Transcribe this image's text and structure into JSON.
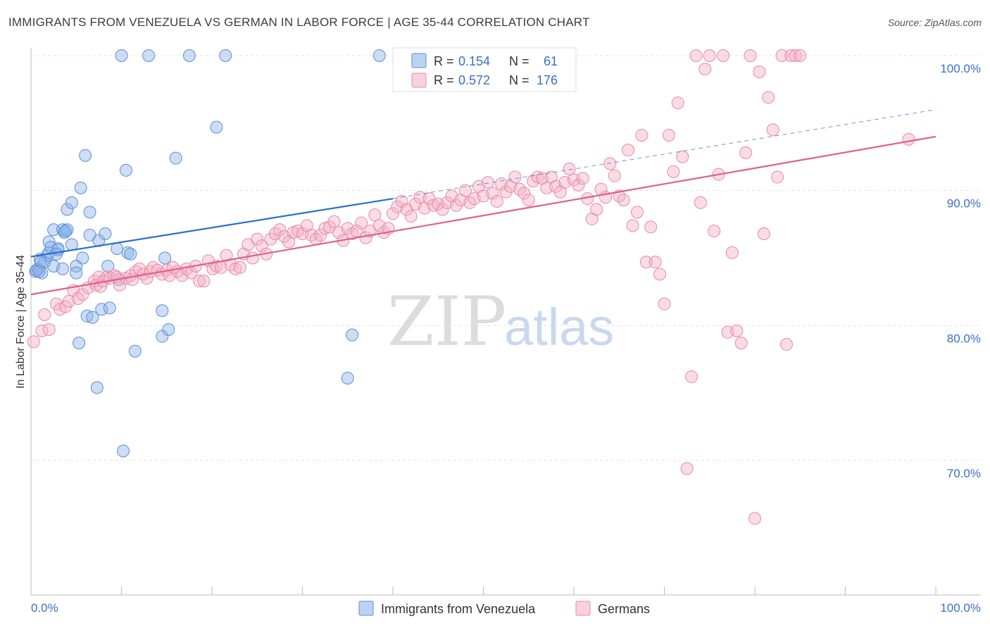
{
  "title": "IMMIGRANTS FROM VENEZUELA VS GERMAN IN LABOR FORCE | AGE 35-44 CORRELATION CHART",
  "source": "Source: ZipAtlas.com",
  "watermark": {
    "part1": "ZIP",
    "part2": "atlas"
  },
  "chart_data": {
    "type": "scatter",
    "ylabel": "In Labor Force | Age 35-44",
    "xlim": [
      0,
      100
    ],
    "ylim": [
      60,
      101
    ],
    "x_tick_labels": [
      "0.0%",
      "100.0%"
    ],
    "y_ticks": [
      70,
      80,
      90,
      100
    ],
    "y_tick_labels": [
      "70.0%",
      "80.0%",
      "90.0%",
      "100.0%"
    ],
    "grid": true,
    "legend_placement": "top-center",
    "stats": [
      {
        "r_label": "R =",
        "r": "0.154",
        "n_label": "N =",
        "n": "61"
      },
      {
        "r_label": "R =",
        "r": "0.572",
        "n_label": "N =",
        "n": "176"
      }
    ],
    "series": [
      {
        "name": "Immigrants from Venezuela",
        "color": "#8fb4e8",
        "stroke": "#5a8fd6",
        "line_color": "#2a6fcc",
        "trend": {
          "x0": 0,
          "y0": 85.1,
          "x1": 40,
          "y1": 89.4,
          "dash_to_x": 100,
          "dash_to_y": 96.0
        },
        "points": [
          [
            0.5,
            84.0
          ],
          [
            0.8,
            84.2
          ],
          [
            1.0,
            84.9
          ],
          [
            1.2,
            83.9
          ],
          [
            1.5,
            84.7
          ],
          [
            1.8,
            85.2
          ],
          [
            2.0,
            85.4
          ],
          [
            2.0,
            86.2
          ],
          [
            2.2,
            85.8
          ],
          [
            2.5,
            84.4
          ],
          [
            2.5,
            87.1
          ],
          [
            3.0,
            85.6
          ],
          [
            3.0,
            85.7
          ],
          [
            3.5,
            84.2
          ],
          [
            3.5,
            87.1
          ],
          [
            3.7,
            86.9
          ],
          [
            4.0,
            88.6
          ],
          [
            4.0,
            87.1
          ],
          [
            4.5,
            89.1
          ],
          [
            4.5,
            86.0
          ],
          [
            5.0,
            84.4
          ],
          [
            5.0,
            83.9
          ],
          [
            5.3,
            78.7
          ],
          [
            5.5,
            90.2
          ],
          [
            5.7,
            85.0
          ],
          [
            6.0,
            92.6
          ],
          [
            6.2,
            80.7
          ],
          [
            6.5,
            88.4
          ],
          [
            6.5,
            86.7
          ],
          [
            6.8,
            80.6
          ],
          [
            7.3,
            75.4
          ],
          [
            7.5,
            86.3
          ],
          [
            7.8,
            81.2
          ],
          [
            8.2,
            86.8
          ],
          [
            8.5,
            84.4
          ],
          [
            8.7,
            81.3
          ],
          [
            9.5,
            85.7
          ],
          [
            9.7,
            83.4
          ],
          [
            10.0,
            100.0
          ],
          [
            10.2,
            70.7
          ],
          [
            10.5,
            91.5
          ],
          [
            10.7,
            85.4
          ],
          [
            11.0,
            85.3
          ],
          [
            11.5,
            78.1
          ],
          [
            13.0,
            100.0
          ],
          [
            14.5,
            81.1
          ],
          [
            14.5,
            79.2
          ],
          [
            14.8,
            85.0
          ],
          [
            15.2,
            79.7
          ],
          [
            16.0,
            92.4
          ],
          [
            17.5,
            100.0
          ],
          [
            20.5,
            94.7
          ],
          [
            21.5,
            100.0
          ],
          [
            35.5,
            79.3
          ],
          [
            35.0,
            76.1
          ],
          [
            38.5,
            100.0
          ],
          [
            0.6,
            84.1
          ],
          [
            1.1,
            84.7
          ],
          [
            2.8,
            85.3
          ],
          [
            3.8,
            87.0
          ],
          [
            0.9,
            84.0
          ]
        ]
      },
      {
        "name": "Germans",
        "color": "#f4b2c6",
        "stroke": "#e889a7",
        "line_color": "#e0608a",
        "trend": {
          "x0": 0,
          "y0": 82.3,
          "x1": 100,
          "y1": 94.0
        },
        "points": [
          [
            0.3,
            78.8
          ],
          [
            1.2,
            79.6
          ],
          [
            1.5,
            80.8
          ],
          [
            2.0,
            79.7
          ],
          [
            2.8,
            81.6
          ],
          [
            3.2,
            81.2
          ],
          [
            3.8,
            81.4
          ],
          [
            4.2,
            81.8
          ],
          [
            4.7,
            82.6
          ],
          [
            5.2,
            82.0
          ],
          [
            5.7,
            82.3
          ],
          [
            6.3,
            82.8
          ],
          [
            7.0,
            83.3
          ],
          [
            7.2,
            83.0
          ],
          [
            7.5,
            83.6
          ],
          [
            7.7,
            82.9
          ],
          [
            8.0,
            83.3
          ],
          [
            8.4,
            83.6
          ],
          [
            8.7,
            83.5
          ],
          [
            9.2,
            83.7
          ],
          [
            9.5,
            83.6
          ],
          [
            9.8,
            83.0
          ],
          [
            10.5,
            83.5
          ],
          [
            11.0,
            83.7
          ],
          [
            11.2,
            83.4
          ],
          [
            11.6,
            84.0
          ],
          [
            12.0,
            84.2
          ],
          [
            12.4,
            83.8
          ],
          [
            12.8,
            83.5
          ],
          [
            13.2,
            84.0
          ],
          [
            13.5,
            84.3
          ],
          [
            14.0,
            84.1
          ],
          [
            14.5,
            83.8
          ],
          [
            15.0,
            84.1
          ],
          [
            15.3,
            83.7
          ],
          [
            15.7,
            84.3
          ],
          [
            16.2,
            84.0
          ],
          [
            16.7,
            83.7
          ],
          [
            17.2,
            84.2
          ],
          [
            17.7,
            83.9
          ],
          [
            18.2,
            84.4
          ],
          [
            18.6,
            83.3
          ],
          [
            19.1,
            83.3
          ],
          [
            19.6,
            84.8
          ],
          [
            20.1,
            84.2
          ],
          [
            20.5,
            84.4
          ],
          [
            21.0,
            84.3
          ],
          [
            21.6,
            85.2
          ],
          [
            22.1,
            84.5
          ],
          [
            22.6,
            84.2
          ],
          [
            23.1,
            84.3
          ],
          [
            23.5,
            85.3
          ],
          [
            24.0,
            86.0
          ],
          [
            24.5,
            85.0
          ],
          [
            25.0,
            86.4
          ],
          [
            25.5,
            85.9
          ],
          [
            26.0,
            85.3
          ],
          [
            26.5,
            86.4
          ],
          [
            27.0,
            86.8
          ],
          [
            27.5,
            87.1
          ],
          [
            28.0,
            86.6
          ],
          [
            28.5,
            86.2
          ],
          [
            29.0,
            86.9
          ],
          [
            29.5,
            87.0
          ],
          [
            30.0,
            86.8
          ],
          [
            30.5,
            87.4
          ],
          [
            31.0,
            86.7
          ],
          [
            31.5,
            86.4
          ],
          [
            32.0,
            86.7
          ],
          [
            32.5,
            87.2
          ],
          [
            33.0,
            87.3
          ],
          [
            33.5,
            87.7
          ],
          [
            34.0,
            86.9
          ],
          [
            34.5,
            86.3
          ],
          [
            35.0,
            87.2
          ],
          [
            35.5,
            86.8
          ],
          [
            36.0,
            87.0
          ],
          [
            36.5,
            87.6
          ],
          [
            37.0,
            86.5
          ],
          [
            37.5,
            87.0
          ],
          [
            38.0,
            88.2
          ],
          [
            38.5,
            87.4
          ],
          [
            39.0,
            86.9
          ],
          [
            39.5,
            87.2
          ],
          [
            40.0,
            88.3
          ],
          [
            40.5,
            88.8
          ],
          [
            41.0,
            89.2
          ],
          [
            41.5,
            88.6
          ],
          [
            42.0,
            88.1
          ],
          [
            42.5,
            89.0
          ],
          [
            43.0,
            89.5
          ],
          [
            43.5,
            88.7
          ],
          [
            44.0,
            89.4
          ],
          [
            44.5,
            88.9
          ],
          [
            45.0,
            89.0
          ],
          [
            45.5,
            88.6
          ],
          [
            46.0,
            89.1
          ],
          [
            46.5,
            89.6
          ],
          [
            47.0,
            88.9
          ],
          [
            47.5,
            89.3
          ],
          [
            48.0,
            90.0
          ],
          [
            48.5,
            89.1
          ],
          [
            49.0,
            89.4
          ],
          [
            49.5,
            90.3
          ],
          [
            50.0,
            89.6
          ],
          [
            50.5,
            90.6
          ],
          [
            51.0,
            89.8
          ],
          [
            51.5,
            89.2
          ],
          [
            52.0,
            90.5
          ],
          [
            52.5,
            89.9
          ],
          [
            53.0,
            90.3
          ],
          [
            53.5,
            91.0
          ],
          [
            54.0,
            90.1
          ],
          [
            54.5,
            89.8
          ],
          [
            55.0,
            89.3
          ],
          [
            55.5,
            90.7
          ],
          [
            56.0,
            91.0
          ],
          [
            56.5,
            90.9
          ],
          [
            57.0,
            90.2
          ],
          [
            57.5,
            91.0
          ],
          [
            58.0,
            90.3
          ],
          [
            58.5,
            89.9
          ],
          [
            59.0,
            90.6
          ],
          [
            59.5,
            91.6
          ],
          [
            60.0,
            90.8
          ],
          [
            60.5,
            90.4
          ],
          [
            61.0,
            90.9
          ],
          [
            61.5,
            89.4
          ],
          [
            62.0,
            87.9
          ],
          [
            62.5,
            88.6
          ],
          [
            63.0,
            90.1
          ],
          [
            63.5,
            89.5
          ],
          [
            64.0,
            92.0
          ],
          [
            64.5,
            91.1
          ],
          [
            65.0,
            89.6
          ],
          [
            65.5,
            89.3
          ],
          [
            66.0,
            93.0
          ],
          [
            66.5,
            87.4
          ],
          [
            67.0,
            88.4
          ],
          [
            67.5,
            94.1
          ],
          [
            68.0,
            84.7
          ],
          [
            68.5,
            87.3
          ],
          [
            69.0,
            84.7
          ],
          [
            69.5,
            83.8
          ],
          [
            70.0,
            81.6
          ],
          [
            70.5,
            94.1
          ],
          [
            71.0,
            91.4
          ],
          [
            71.5,
            96.5
          ],
          [
            72.0,
            92.5
          ],
          [
            72.5,
            69.4
          ],
          [
            73.0,
            76.2
          ],
          [
            73.5,
            100.0
          ],
          [
            74.0,
            89.1
          ],
          [
            74.5,
            99.0
          ],
          [
            75.0,
            100.0
          ],
          [
            75.5,
            87.0
          ],
          [
            76.0,
            91.2
          ],
          [
            76.5,
            100.0
          ],
          [
            77.0,
            79.5
          ],
          [
            77.5,
            85.4
          ],
          [
            78.0,
            79.6
          ],
          [
            78.5,
            78.7
          ],
          [
            79.0,
            92.8
          ],
          [
            79.5,
            100.0
          ],
          [
            80.0,
            65.7
          ],
          [
            80.5,
            98.8
          ],
          [
            81.0,
            86.8
          ],
          [
            81.5,
            96.9
          ],
          [
            82.0,
            94.5
          ],
          [
            82.5,
            91.0
          ],
          [
            83.0,
            100.0
          ],
          [
            83.5,
            78.6
          ],
          [
            84.0,
            100.0
          ],
          [
            84.5,
            100.0
          ],
          [
            85.0,
            100.0
          ],
          [
            97.0,
            93.8
          ]
        ]
      }
    ]
  }
}
